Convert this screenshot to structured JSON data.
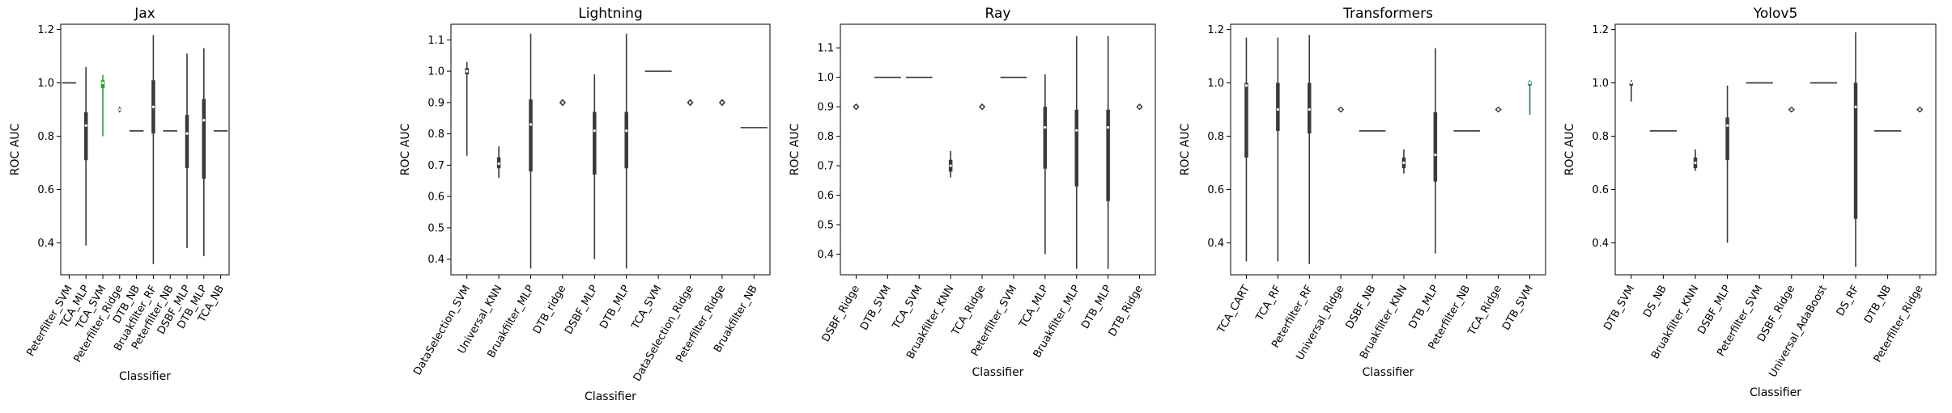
{
  "chart_data": [
    {
      "type": "violin",
      "title": "Jax",
      "xlabel": "Classifier",
      "ylabel": "ROC AUC",
      "ylim": [
        0.28,
        1.22
      ],
      "yticks": [
        0.4,
        0.6,
        0.8,
        1.0,
        1.2
      ],
      "grid": false,
      "categories": [
        "Peterfilter_SVM",
        "TCA_MLP",
        "TCA_SVM",
        "Peterfilter_Ridge",
        "DTB_NB",
        "Bruakfilter_RF",
        "Peterfilter_NB",
        "DSBF_MLP",
        "DTB_MLP",
        "TCA_NB"
      ],
      "series": [
        {
          "min": 1.0,
          "q1": 1.0,
          "median": 1.0,
          "q3": 1.0,
          "max": 1.0,
          "color": "#3a3a3a"
        },
        {
          "min": 0.39,
          "q1": 0.71,
          "median": 0.84,
          "q3": 0.89,
          "max": 1.06,
          "color": "#3a3a3a"
        },
        {
          "min": 0.8,
          "q1": 0.98,
          "median": 1.0,
          "q3": 1.01,
          "max": 1.03,
          "color": "#2ca02c"
        },
        {
          "min": 0.89,
          "q1": 0.895,
          "median": 0.9,
          "q3": 0.905,
          "max": 0.91,
          "color": "#3a3a3a"
        },
        {
          "min": 0.82,
          "q1": 0.82,
          "median": 0.82,
          "q3": 0.82,
          "max": 0.82,
          "color": "#3a3a3a"
        },
        {
          "min": 0.32,
          "q1": 0.81,
          "median": 0.91,
          "q3": 1.01,
          "max": 1.18,
          "color": "#3a3a3a"
        },
        {
          "min": 0.82,
          "q1": 0.82,
          "median": 0.82,
          "q3": 0.82,
          "max": 0.82,
          "color": "#3a3a3a"
        },
        {
          "min": 0.38,
          "q1": 0.68,
          "median": 0.81,
          "q3": 0.88,
          "max": 1.11,
          "color": "#3a3a3a"
        },
        {
          "min": 0.35,
          "q1": 0.64,
          "median": 0.86,
          "q3": 0.94,
          "max": 1.13,
          "color": "#3a3a3a"
        },
        {
          "min": 0.82,
          "q1": 0.82,
          "median": 0.82,
          "q3": 0.82,
          "max": 0.82,
          "color": "#3a3a3a"
        }
      ]
    },
    {
      "type": "violin",
      "title": "Lightning",
      "xlabel": "Classifier",
      "ylabel": "ROC AUC",
      "ylim": [
        0.35,
        1.15
      ],
      "yticks": [
        0.4,
        0.5,
        0.6,
        0.7,
        0.8,
        0.9,
        1.0,
        1.1
      ],
      "grid": false,
      "categories": [
        "DataSelection_SVM",
        "Universal_KNN",
        "Bruakfilter_MLP",
        "DTB_ridge",
        "DSBF_MLP",
        "DTB_MLP",
        "TCA_SVM",
        "DataSelection_Ridge",
        "Peterfilter_Ridge",
        "Bruakfilter_NB"
      ],
      "series": [
        {
          "min": 0.73,
          "q1": 0.99,
          "median": 1.0,
          "q3": 1.01,
          "max": 1.03,
          "color": "#3a3a3a"
        },
        {
          "min": 0.66,
          "q1": 0.69,
          "median": 0.705,
          "q3": 0.725,
          "max": 0.76,
          "color": "#3a3a3a"
        },
        {
          "min": 0.37,
          "q1": 0.68,
          "median": 0.83,
          "q3": 0.91,
          "max": 1.12,
          "color": "#3a3a3a"
        },
        {
          "min": 0.89,
          "q1": 0.895,
          "median": 0.9,
          "q3": 0.905,
          "max": 0.91,
          "color": "#3a3a3a"
        },
        {
          "min": 0.4,
          "q1": 0.67,
          "median": 0.81,
          "q3": 0.87,
          "max": 0.99,
          "color": "#3a3a3a"
        },
        {
          "min": 0.37,
          "q1": 0.69,
          "median": 0.81,
          "q3": 0.87,
          "max": 1.12,
          "color": "#3a3a3a"
        },
        {
          "min": 1.0,
          "q1": 1.0,
          "median": 1.0,
          "q3": 1.0,
          "max": 1.0,
          "color": "#3a3a3a"
        },
        {
          "min": 0.89,
          "q1": 0.895,
          "median": 0.9,
          "q3": 0.905,
          "max": 0.91,
          "color": "#3a3a3a"
        },
        {
          "min": 0.89,
          "q1": 0.895,
          "median": 0.9,
          "q3": 0.905,
          "max": 0.91,
          "color": "#3a3a3a"
        },
        {
          "min": 0.82,
          "q1": 0.82,
          "median": 0.82,
          "q3": 0.82,
          "max": 0.82,
          "color": "#3a3a3a"
        }
      ]
    },
    {
      "type": "violin",
      "title": "Ray",
      "xlabel": "Classifier",
      "ylabel": "ROC AUC",
      "ylim": [
        0.33,
        1.18
      ],
      "yticks": [
        0.4,
        0.5,
        0.6,
        0.7,
        0.8,
        0.9,
        1.0,
        1.1
      ],
      "grid": false,
      "categories": [
        "DSBF_Ridge",
        "DTB_SVM",
        "TCA_SVM",
        "Bruakfilter_KNN",
        "TCA_Ridge",
        "Peterfilter_SVM",
        "TCA_MLP",
        "Bruakfilter_MLP",
        "DTB_MLP",
        "DTB_Ridge"
      ],
      "series": [
        {
          "min": 0.89,
          "q1": 0.895,
          "median": 0.9,
          "q3": 0.905,
          "max": 0.91,
          "color": "#3a3a3a"
        },
        {
          "min": 1.0,
          "q1": 1.0,
          "median": 1.0,
          "q3": 1.0,
          "max": 1.0,
          "color": "#3a3a3a"
        },
        {
          "min": 1.0,
          "q1": 1.0,
          "median": 1.0,
          "q3": 1.0,
          "max": 1.0,
          "color": "#3a3a3a"
        },
        {
          "min": 0.66,
          "q1": 0.68,
          "median": 0.7,
          "q3": 0.72,
          "max": 0.75,
          "color": "#3a3a3a"
        },
        {
          "min": 0.89,
          "q1": 0.895,
          "median": 0.9,
          "q3": 0.905,
          "max": 0.91,
          "color": "#3a3a3a"
        },
        {
          "min": 1.0,
          "q1": 1.0,
          "median": 1.0,
          "q3": 1.0,
          "max": 1.0,
          "color": "#3a3a3a"
        },
        {
          "min": 0.4,
          "q1": 0.69,
          "median": 0.83,
          "q3": 0.9,
          "max": 1.01,
          "color": "#3a3a3a"
        },
        {
          "min": 0.35,
          "q1": 0.63,
          "median": 0.82,
          "q3": 0.89,
          "max": 1.14,
          "color": "#3a3a3a"
        },
        {
          "min": 0.35,
          "q1": 0.58,
          "median": 0.83,
          "q3": 0.89,
          "max": 1.14,
          "color": "#3a3a3a"
        },
        {
          "min": 0.89,
          "q1": 0.895,
          "median": 0.9,
          "q3": 0.905,
          "max": 0.91,
          "color": "#3a3a3a"
        }
      ]
    },
    {
      "type": "violin",
      "title": "Transformers",
      "xlabel": "Classifier",
      "ylabel": "ROC AUC",
      "ylim": [
        0.28,
        1.22
      ],
      "yticks": [
        0.4,
        0.6,
        0.8,
        1.0,
        1.2
      ],
      "grid": false,
      "categories": [
        "TCA_CART",
        "TCA_RF",
        "Peterfilter_RF",
        "Universal_Ridge",
        "DSBF_NB",
        "Bruakfilter_KNN",
        "DTB_MLP",
        "Peterfilter_NB",
        "TCA_Ridge",
        "DTB_SVM"
      ],
      "series": [
        {
          "min": 0.33,
          "q1": 0.72,
          "median": 0.99,
          "q3": 1.0,
          "max": 1.17,
          "color": "#3a3a3a"
        },
        {
          "min": 0.33,
          "q1": 0.82,
          "median": 0.9,
          "q3": 1.0,
          "max": 1.17,
          "color": "#3a3a3a"
        },
        {
          "min": 0.32,
          "q1": 0.81,
          "median": 0.9,
          "q3": 1.0,
          "max": 1.18,
          "color": "#3a3a3a"
        },
        {
          "min": 0.89,
          "q1": 0.895,
          "median": 0.9,
          "q3": 0.905,
          "max": 0.91,
          "color": "#3a3a3a"
        },
        {
          "min": 0.82,
          "q1": 0.82,
          "median": 0.82,
          "q3": 0.82,
          "max": 0.82,
          "color": "#3a3a3a"
        },
        {
          "min": 0.66,
          "q1": 0.68,
          "median": 0.7,
          "q3": 0.72,
          "max": 0.75,
          "color": "#3a3a3a"
        },
        {
          "min": 0.36,
          "q1": 0.63,
          "median": 0.73,
          "q3": 0.89,
          "max": 1.13,
          "color": "#3a3a3a"
        },
        {
          "min": 0.82,
          "q1": 0.82,
          "median": 0.82,
          "q3": 0.82,
          "max": 0.82,
          "color": "#3a3a3a"
        },
        {
          "min": 0.89,
          "q1": 0.895,
          "median": 0.9,
          "q3": 0.905,
          "max": 0.91,
          "color": "#3a3a3a"
        },
        {
          "min": 0.88,
          "q1": 0.99,
          "median": 1.0,
          "q3": 1.005,
          "max": 1.01,
          "color": "#2a7d6e"
        }
      ]
    },
    {
      "type": "violin",
      "title": "Yolov5",
      "xlabel": "Classifier",
      "ylabel": "ROC AUC",
      "ylim": [
        0.28,
        1.22
      ],
      "yticks": [
        0.4,
        0.6,
        0.8,
        1.0,
        1.2
      ],
      "grid": false,
      "categories": [
        "DTB_SVM",
        "DS_NB",
        "Bruakfilter_KNN",
        "DSBF_MLP",
        "Peterfilter_SVM",
        "DSBF_Ridge",
        "Universal_AdaBoost",
        "DS_RF",
        "DTB_NB",
        "Peterfilter_Ridge"
      ],
      "series": [
        {
          "min": 0.93,
          "q1": 0.99,
          "median": 1.0,
          "q3": 1.0,
          "max": 1.01,
          "color": "#3a3a3a"
        },
        {
          "min": 0.82,
          "q1": 0.82,
          "median": 0.82,
          "q3": 0.82,
          "max": 0.82,
          "color": "#3a3a3a"
        },
        {
          "min": 0.67,
          "q1": 0.68,
          "median": 0.7,
          "q3": 0.72,
          "max": 0.75,
          "color": "#3a3a3a"
        },
        {
          "min": 0.4,
          "q1": 0.71,
          "median": 0.84,
          "q3": 0.87,
          "max": 0.99,
          "color": "#3a3a3a"
        },
        {
          "min": 1.0,
          "q1": 1.0,
          "median": 1.0,
          "q3": 1.0,
          "max": 1.0,
          "color": "#3a3a3a"
        },
        {
          "min": 0.89,
          "q1": 0.895,
          "median": 0.9,
          "q3": 0.905,
          "max": 0.91,
          "color": "#3a3a3a"
        },
        {
          "min": 1.0,
          "q1": 1.0,
          "median": 1.0,
          "q3": 1.0,
          "max": 1.0,
          "color": "#3a3a3a"
        },
        {
          "min": 0.31,
          "q1": 0.49,
          "median": 0.91,
          "q3": 1.0,
          "max": 1.19,
          "color": "#3a3a3a"
        },
        {
          "min": 0.82,
          "q1": 0.82,
          "median": 0.82,
          "q3": 0.82,
          "max": 0.82,
          "color": "#3a3a3a"
        },
        {
          "min": 0.89,
          "q1": 0.895,
          "median": 0.9,
          "q3": 0.905,
          "max": 0.91,
          "color": "#3a3a3a"
        }
      ]
    }
  ]
}
